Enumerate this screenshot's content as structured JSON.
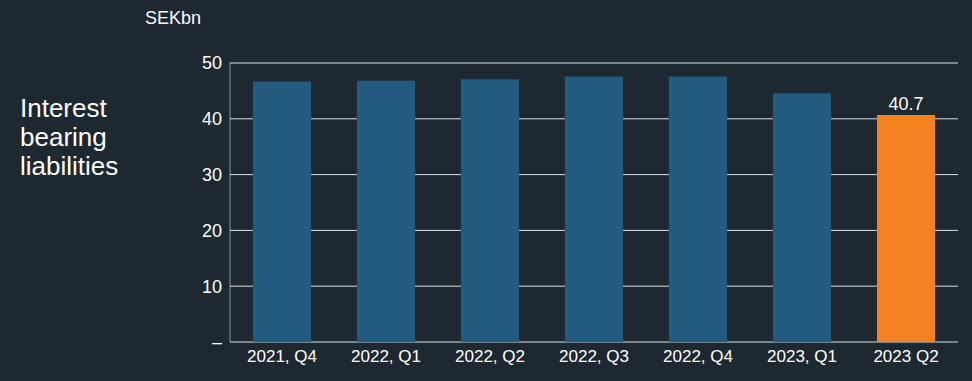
{
  "chart_data": {
    "type": "bar",
    "title": "Interest bearing liabilities",
    "y_label": "SEKbn",
    "categories": [
      "2021, Q4",
      "2022, Q1",
      "2022, Q2",
      "2022, Q3",
      "2022, Q4",
      "2023, Q1",
      "2023 Q2"
    ],
    "values": [
      46.7,
      46.8,
      47.1,
      47.6,
      47.6,
      44.6,
      40.7
    ],
    "value_labels": [
      null,
      null,
      null,
      null,
      null,
      null,
      "40.7"
    ],
    "colors": [
      "#235a80",
      "#235a80",
      "#235a80",
      "#235a80",
      "#235a80",
      "#235a80",
      "#f58220"
    ],
    "ylim": [
      0,
      50
    ],
    "yticks": [
      {
        "value": 0,
        "label": "–"
      },
      10,
      20,
      30,
      40,
      50
    ],
    "grid": true
  }
}
